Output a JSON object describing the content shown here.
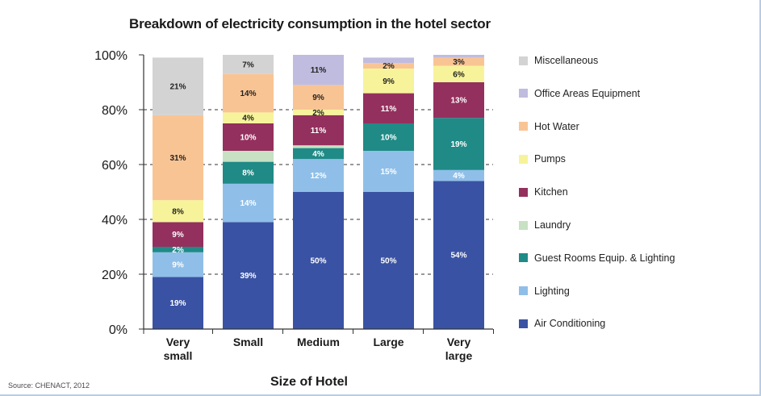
{
  "chart_data": {
    "type": "bar",
    "stacked": true,
    "title": "Breakdown of electricity consumption in the hotel sector",
    "xlabel": "Size of Hotel",
    "ylabel": "",
    "ylim": [
      0,
      100
    ],
    "y_ticks": [
      "0%",
      "20%",
      "40%",
      "60%",
      "80%",
      "100%"
    ],
    "grid": "dashed horizontal",
    "legend_position": "right",
    "categories": [
      [
        "Very",
        "small"
      ],
      [
        "Small"
      ],
      [
        "Medium"
      ],
      [
        "Large"
      ],
      [
        "Very",
        "large"
      ]
    ],
    "series": [
      {
        "name": "Air Conditioning",
        "color": "#3a52a3",
        "values": [
          19,
          39,
          50,
          50,
          54
        ],
        "labels": [
          "19%",
          "39%",
          "50%",
          "50%",
          "54%"
        ]
      },
      {
        "name": "Lighting",
        "color": "#8fbfe8",
        "values": [
          9,
          14,
          12,
          15,
          4
        ],
        "labels": [
          "9%",
          "14%",
          "12%",
          "15%",
          "4%"
        ]
      },
      {
        "name": "Guest Rooms Equip. & Lighting",
        "color": "#1f8a86",
        "values": [
          2,
          8,
          4,
          10,
          19
        ],
        "labels": [
          "2%",
          "8%",
          "4%",
          "10%",
          "19%"
        ]
      },
      {
        "name": "Laundry",
        "color": "#c7e1c2",
        "values": [
          0,
          4,
          1,
          0,
          0
        ],
        "labels": [
          "",
          "",
          "",
          "",
          ""
        ]
      },
      {
        "name": "Kitchen",
        "color": "#94305e",
        "values": [
          9,
          10,
          11,
          11,
          13
        ],
        "labels": [
          "9%",
          "10%",
          "11%",
          "11%",
          "13%"
        ]
      },
      {
        "name": "Pumps",
        "color": "#f7f39a",
        "values": [
          8,
          4,
          2,
          9,
          6
        ],
        "labels": [
          "8%",
          "4%",
          "2%",
          "9%",
          "6%"
        ]
      },
      {
        "name": "Hot Water",
        "color": "#f9c494",
        "values": [
          31,
          14,
          9,
          2,
          3
        ],
        "labels": [
          "31%",
          "14%",
          "9%",
          "2%",
          "3%"
        ]
      },
      {
        "name": "Office Areas Equipment",
        "color": "#c0bcdf",
        "values": [
          0,
          0,
          11,
          2,
          1
        ],
        "labels": [
          "",
          "",
          "11%",
          "",
          ""
        ]
      },
      {
        "name": "Miscellaneous",
        "color": "#d3d3d3",
        "values": [
          21,
          7,
          0,
          0,
          0
        ],
        "labels": [
          "21%",
          "7%",
          "",
          "",
          ""
        ]
      }
    ],
    "legend": [
      {
        "label": "Miscellaneous",
        "color": "#d3d3d3"
      },
      {
        "label": "Office Areas Equipment",
        "color": "#c0bcdf"
      },
      {
        "label": "Hot Water",
        "color": "#f9c494"
      },
      {
        "label": "Pumps",
        "color": "#f7f39a"
      },
      {
        "label": "Kitchen",
        "color": "#94305e"
      },
      {
        "label": "Laundry",
        "color": "#c7e1c2"
      },
      {
        "label": "Guest Rooms Equip. & Lighting",
        "color": "#1f8a86"
      },
      {
        "label": "Lighting",
        "color": "#8fbfe8"
      },
      {
        "label": "Air Conditioning",
        "color": "#3a52a3"
      }
    ]
  },
  "source": "Source: CHENACT, 2012"
}
